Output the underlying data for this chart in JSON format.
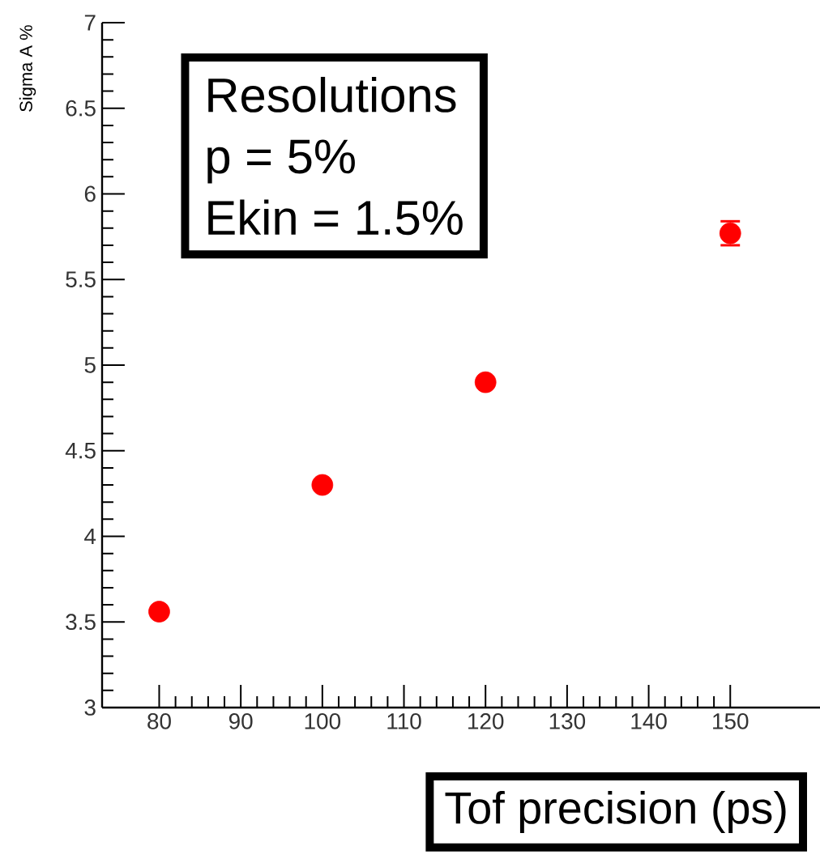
{
  "chart_data": {
    "type": "scatter",
    "xlabel": "Tof precision (ps)",
    "ylabel": "Sigma A %",
    "x": [
      80,
      100,
      120,
      150
    ],
    "series": [
      {
        "color": "#ff0000",
        "values": [
          3.56,
          4.3,
          4.9,
          5.77
        ],
        "errors": [
          null,
          null,
          null,
          0.07
        ]
      }
    ],
    "xlim": [
      73,
      161
    ],
    "ylim": [
      3,
      7
    ],
    "xticks": [
      80,
      90,
      100,
      110,
      120,
      130,
      140,
      150
    ],
    "yticks": [
      3,
      3.5,
      4,
      4.5,
      5,
      5.5,
      6,
      6.5,
      7
    ],
    "grid": false,
    "annotations": [
      "Resolutions",
      "p       = 5%",
      "Ekin  = 1.5%"
    ]
  }
}
